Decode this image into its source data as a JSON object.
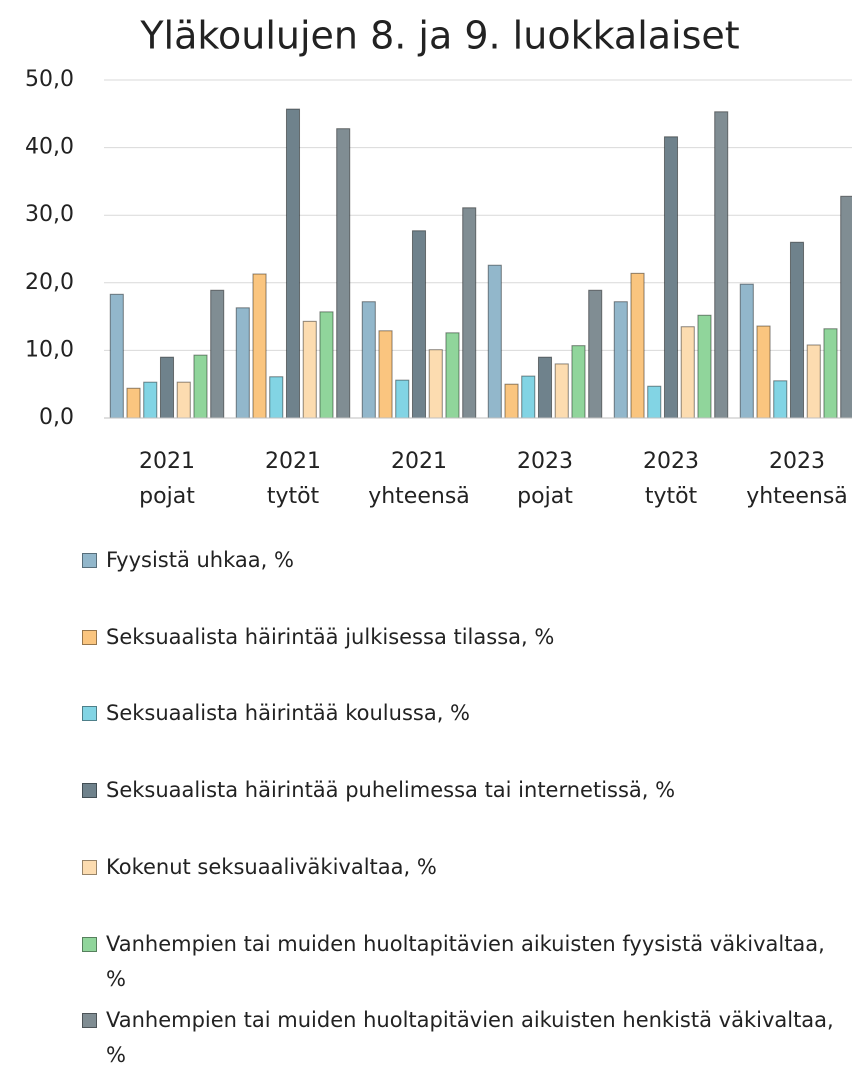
{
  "chart_data": {
    "type": "bar",
    "title": "Yläkoulujen 8. ja 9. luokkalaiset",
    "categories": [
      "2021 pojat",
      "2021 tytöt",
      "2021 yhteensä",
      "2023 pojat",
      "2023 tytöt",
      "2023 yhteensä"
    ],
    "series": [
      {
        "name": "Fyysistä uhkaa, %",
        "color": "#92b7cb",
        "values": [
          18.3,
          16.3,
          17.2,
          22.6,
          17.2,
          19.8
        ]
      },
      {
        "name": "Seksuaalista häirintää julkisessa tilassa, %",
        "color": "#fac57f",
        "values": [
          4.4,
          21.3,
          12.9,
          5.0,
          21.4,
          13.6
        ]
      },
      {
        "name": "Seksuaalista häirintää koulussa, %",
        "color": "#82d4e4",
        "values": [
          5.3,
          6.1,
          5.6,
          6.2,
          4.7,
          5.5
        ]
      },
      {
        "name": "Seksuaalista häirintää puhelimessa tai internetissä, %",
        "color": "#6f828c",
        "values": [
          9.0,
          45.7,
          27.7,
          9.0,
          41.6,
          26.0
        ]
      },
      {
        "name": "Kokenut seksuaaliväkivaltaa, %",
        "color": "#fcdcb0",
        "values": [
          5.3,
          14.3,
          10.1,
          8.0,
          13.5,
          10.8
        ]
      },
      {
        "name": "Vanhempien tai muiden huoltapitävien aikuisten fyysistä väkivaltaa, %",
        "color": "#90d59b",
        "values": [
          9.3,
          15.7,
          12.6,
          10.7,
          15.2,
          13.2
        ]
      },
      {
        "name": "Vanhempien tai muiden huoltapitävien aikuisten henkistä väkivaltaa, %",
        "color": "#808d93",
        "values": [
          18.9,
          42.8,
          31.1,
          18.9,
          45.3,
          32.8
        ]
      }
    ],
    "ylim": [
      0,
      50
    ],
    "yticks": [
      {
        "value": 0,
        "label": "0,0"
      },
      {
        "value": 10,
        "label": "10,0"
      },
      {
        "value": 20,
        "label": "20,0"
      },
      {
        "value": 30,
        "label": "30,0"
      },
      {
        "value": 40,
        "label": "40,0"
      },
      {
        "value": 50,
        "label": "50,0"
      }
    ],
    "grid": true
  }
}
